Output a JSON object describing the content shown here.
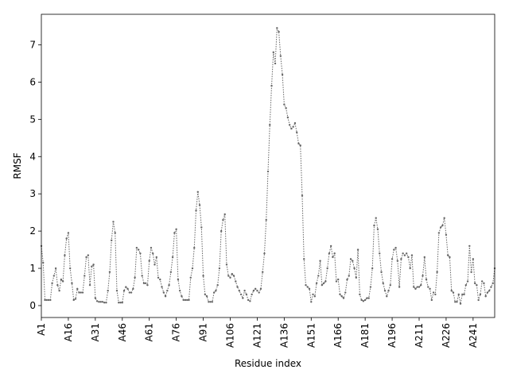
{
  "chart_data": {
    "type": "line",
    "xlabel": "Residue index",
    "ylabel": "RMSF",
    "categories": [
      "A1",
      null,
      null,
      null,
      null,
      null,
      null,
      null,
      null,
      null,
      null,
      null,
      null,
      null,
      null,
      "A16",
      null,
      null,
      null,
      null,
      null,
      null,
      null,
      null,
      null,
      null,
      null,
      null,
      null,
      null,
      "A31",
      null,
      null,
      null,
      null,
      null,
      null,
      null,
      null,
      null,
      null,
      null,
      null,
      null,
      null,
      "A46",
      null,
      null,
      null,
      null,
      null,
      null,
      null,
      null,
      null,
      null,
      null,
      null,
      null,
      null,
      "A61",
      null,
      null,
      null,
      null,
      null,
      null,
      null,
      null,
      null,
      null,
      null,
      null,
      null,
      null,
      "A76",
      null,
      null,
      null,
      null,
      null,
      null,
      null,
      null,
      null,
      null,
      null,
      null,
      null,
      null,
      "A91",
      null,
      null,
      null,
      null,
      null,
      null,
      null,
      null,
      null,
      null,
      null,
      null,
      null,
      null,
      "A106",
      null,
      null,
      null,
      null,
      null,
      null,
      null,
      null,
      null,
      null,
      null,
      null,
      null,
      null,
      "A121",
      null,
      null,
      null,
      null,
      null,
      null,
      null,
      null,
      null,
      null,
      null,
      null,
      null,
      null,
      "A136",
      null,
      null,
      null,
      null,
      null,
      null,
      null,
      null,
      null,
      null,
      null,
      null,
      null,
      null,
      "A151",
      null,
      null,
      null,
      null,
      null,
      null,
      null,
      null,
      null,
      null,
      null,
      null,
      null,
      null,
      "A166",
      null,
      null,
      null,
      null,
      null,
      null,
      null,
      null,
      null,
      null,
      null,
      null,
      null,
      null,
      "A181",
      null,
      null,
      null,
      null,
      null,
      null,
      null,
      null,
      null,
      null,
      null,
      null,
      null,
      null,
      "A196",
      null,
      null,
      null,
      null,
      null,
      null,
      null,
      null,
      null,
      null,
      null,
      null,
      null,
      null,
      "A211",
      null,
      null,
      null,
      null,
      null,
      null,
      null,
      null,
      null,
      null,
      null,
      null,
      null,
      null,
      "A226",
      null,
      null,
      null,
      null,
      null,
      null,
      null,
      null,
      null,
      null,
      null,
      null,
      null,
      null,
      "A241",
      null,
      null,
      null,
      null,
      null,
      null,
      null,
      null,
      null,
      null,
      null,
      null
    ],
    "series": [
      {
        "color": "#666666",
        "values": [
          1.6,
          1.15,
          0.15,
          0.15,
          0.15,
          0.15,
          0.6,
          0.8,
          1.0,
          0.55,
          0.4,
          0.7,
          0.65,
          1.35,
          1.8,
          1.95,
          1.0,
          0.6,
          0.15,
          0.18,
          0.45,
          0.35,
          0.35,
          0.35,
          0.8,
          1.3,
          1.35,
          0.55,
          1.05,
          1.1,
          0.2,
          0.12,
          0.1,
          0.1,
          0.1,
          0.08,
          0.08,
          0.4,
          0.9,
          1.75,
          2.25,
          1.95,
          0.4,
          0.08,
          0.08,
          0.08,
          0.4,
          0.5,
          0.45,
          0.35,
          0.35,
          0.45,
          0.75,
          1.55,
          1.5,
          1.4,
          0.8,
          0.6,
          0.6,
          0.55,
          1.2,
          1.55,
          1.4,
          1.1,
          1.3,
          0.75,
          0.7,
          0.5,
          0.35,
          0.25,
          0.4,
          0.55,
          0.9,
          1.3,
          1.95,
          2.05,
          0.7,
          0.4,
          0.25,
          0.15,
          0.15,
          0.15,
          0.15,
          0.75,
          1.0,
          1.55,
          2.55,
          3.05,
          2.7,
          2.1,
          0.8,
          0.3,
          0.25,
          0.1,
          0.1,
          0.1,
          0.35,
          0.4,
          0.55,
          1.0,
          2.0,
          2.3,
          2.45,
          1.1,
          0.8,
          0.75,
          0.85,
          0.8,
          0.65,
          0.5,
          0.4,
          0.3,
          0.2,
          0.4,
          0.3,
          0.15,
          0.12,
          0.3,
          0.4,
          0.45,
          0.4,
          0.35,
          0.45,
          0.9,
          1.4,
          2.3,
          3.6,
          4.85,
          5.9,
          6.8,
          6.5,
          7.45,
          7.35,
          6.7,
          6.2,
          5.4,
          5.3,
          5.05,
          4.85,
          4.75,
          4.8,
          4.9,
          4.65,
          4.35,
          4.3,
          2.95,
          1.25,
          0.55,
          0.5,
          0.45,
          0.1,
          0.3,
          0.25,
          0.6,
          0.8,
          1.2,
          0.55,
          0.6,
          0.65,
          1.0,
          1.4,
          1.6,
          1.3,
          1.4,
          0.65,
          0.7,
          0.3,
          0.25,
          0.2,
          0.35,
          0.7,
          0.8,
          1.25,
          1.2,
          1.0,
          0.75,
          1.5,
          0.3,
          0.15,
          0.12,
          0.15,
          0.2,
          0.2,
          0.5,
          1.0,
          2.15,
          2.35,
          2.05,
          1.4,
          0.9,
          0.6,
          0.4,
          0.25,
          0.4,
          0.55,
          1.25,
          1.5,
          1.55,
          1.2,
          0.5,
          1.25,
          1.4,
          1.35,
          1.4,
          1.3,
          1.0,
          1.35,
          0.5,
          0.45,
          0.5,
          0.5,
          0.55,
          0.8,
          1.3,
          0.7,
          0.5,
          0.45,
          0.15,
          0.35,
          0.3,
          0.9,
          1.95,
          2.1,
          2.15,
          2.35,
          1.9,
          1.35,
          1.3,
          0.4,
          0.35,
          0.1,
          0.1,
          0.3,
          0.05,
          0.3,
          0.3,
          0.55,
          0.65,
          1.6,
          0.9,
          1.25,
          0.6,
          0.55,
          0.15,
          0.3,
          0.65,
          0.6,
          0.25,
          0.35,
          0.4,
          0.5,
          0.6,
          1.0
        ]
      }
    ],
    "ylim": [
      -0.32,
      7.82
    ],
    "yticks": [
      0,
      1,
      2,
      3,
      4,
      5,
      6,
      7
    ],
    "grid": false
  }
}
